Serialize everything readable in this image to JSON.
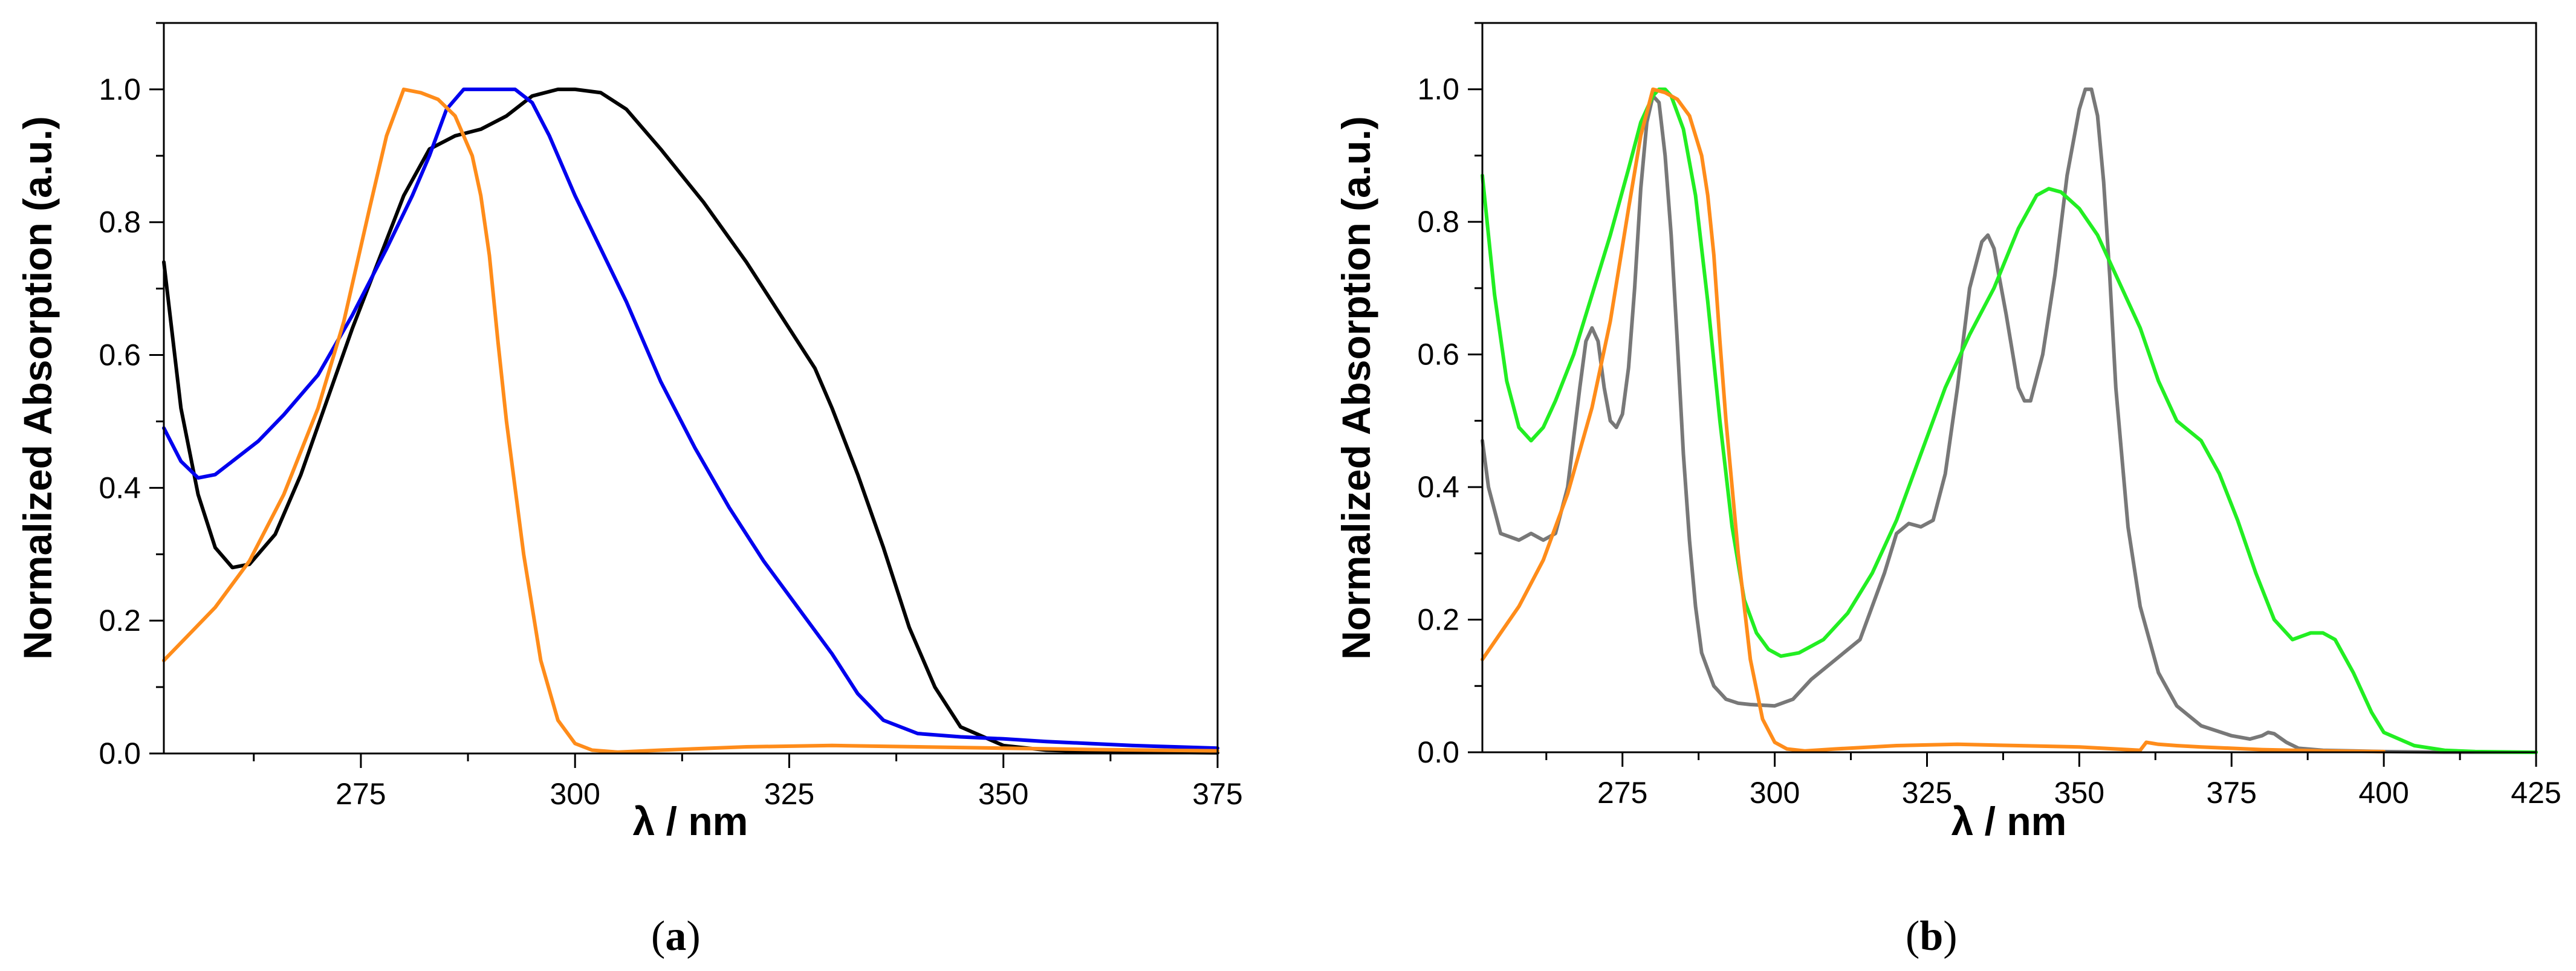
{
  "chart_data": [
    {
      "type": "line",
      "panel_label": "a",
      "xlabel": "λ / nm",
      "ylabel": "Normalized Absorption (a.u.)",
      "xlim": [
        252,
        375
      ],
      "ylim": [
        0.0,
        1.1
      ],
      "xticks": [
        275,
        300,
        325,
        350,
        375
      ],
      "yticks": [
        0.0,
        0.2,
        0.4,
        0.6,
        0.8,
        1.0
      ],
      "xtick_labels": [
        "275",
        "300",
        "325",
        "350",
        "375"
      ],
      "ytick_labels": [
        "0.0",
        "0.2",
        "0.4",
        "0.6",
        "0.8",
        "1.0"
      ],
      "grid": false,
      "series": [
        {
          "name": "black",
          "color": "#000000",
          "x": [
            252,
            254,
            256,
            258,
            260,
            262,
            265,
            268,
            271,
            274,
            277,
            280,
            283,
            286,
            289,
            292,
            295,
            298,
            300,
            303,
            306,
            310,
            315,
            320,
            325,
            328,
            330,
            333,
            336,
            339,
            342,
            345,
            350,
            355,
            360,
            365,
            375
          ],
          "y": [
            0.74,
            0.52,
            0.39,
            0.31,
            0.28,
            0.285,
            0.33,
            0.42,
            0.53,
            0.64,
            0.74,
            0.84,
            0.91,
            0.93,
            0.94,
            0.96,
            0.99,
            1.0,
            1.0,
            0.995,
            0.97,
            0.91,
            0.83,
            0.74,
            0.64,
            0.58,
            0.52,
            0.42,
            0.31,
            0.19,
            0.1,
            0.04,
            0.012,
            0.005,
            0.003,
            0.002,
            0.001
          ]
        },
        {
          "name": "blue",
          "color": "#0000ee",
          "x": [
            252,
            254,
            256,
            258,
            260,
            263,
            266,
            270,
            274,
            278,
            281,
            283,
            285,
            287,
            290,
            293,
            295,
            297,
            300,
            303,
            306,
            310,
            314,
            318,
            322,
            326,
            330,
            333,
            336,
            340,
            345,
            350,
            355,
            360,
            365,
            370,
            375
          ],
          "y": [
            0.49,
            0.44,
            0.415,
            0.42,
            0.44,
            0.47,
            0.51,
            0.57,
            0.66,
            0.76,
            0.84,
            0.9,
            0.97,
            1.0,
            1.0,
            1.0,
            0.98,
            0.93,
            0.84,
            0.76,
            0.68,
            0.56,
            0.46,
            0.37,
            0.29,
            0.22,
            0.15,
            0.09,
            0.05,
            0.03,
            0.025,
            0.022,
            0.018,
            0.015,
            0.012,
            0.01,
            0.008
          ]
        },
        {
          "name": "orange",
          "color": "#ff8c1a",
          "x": [
            252,
            255,
            258,
            262,
            266,
            270,
            273,
            276,
            278,
            280,
            282,
            284,
            286,
            288,
            289,
            290,
            291,
            292,
            294,
            296,
            298,
            300,
            302,
            305,
            310,
            320,
            330,
            340,
            350,
            360,
            375
          ],
          "y": [
            0.14,
            0.18,
            0.22,
            0.29,
            0.39,
            0.52,
            0.65,
            0.82,
            0.93,
            1.0,
            0.995,
            0.985,
            0.96,
            0.9,
            0.84,
            0.75,
            0.62,
            0.5,
            0.3,
            0.14,
            0.05,
            0.015,
            0.005,
            0.002,
            0.005,
            0.01,
            0.012,
            0.01,
            0.008,
            0.006,
            0.004
          ]
        }
      ]
    },
    {
      "type": "line",
      "panel_label": "b",
      "xlabel": "λ / nm",
      "ylabel": "Normalized Absorption (a.u.)",
      "xlim": [
        252,
        425
      ],
      "ylim": [
        0.0,
        1.1
      ],
      "xticks": [
        275,
        300,
        325,
        350,
        375,
        400,
        425
      ],
      "yticks": [
        0.0,
        0.2,
        0.4,
        0.6,
        0.8,
        1.0
      ],
      "xtick_labels": [
        "275",
        "300",
        "325",
        "350",
        "375",
        "400",
        "425"
      ],
      "ytick_labels": [
        "0.0",
        "0.2",
        "0.4",
        "0.6",
        "0.8",
        "1.0"
      ],
      "grid": false,
      "series": [
        {
          "name": "gray",
          "color": "#787878",
          "x": [
            252,
            253,
            255,
            258,
            260,
            262,
            264,
            266,
            268,
            269,
            270,
            271,
            272,
            273,
            274,
            275,
            276,
            277,
            278,
            279,
            280,
            281,
            282,
            283,
            284,
            285,
            286,
            287,
            288,
            290,
            292,
            294,
            296,
            298,
            300,
            303,
            306,
            310,
            314,
            318,
            320,
            322,
            324,
            326,
            328,
            330,
            332,
            334,
            335,
            336,
            338,
            340,
            341,
            342,
            344,
            346,
            348,
            350,
            351,
            352,
            353,
            354,
            355,
            356,
            358,
            360,
            363,
            366,
            370,
            375,
            378,
            380,
            381,
            382,
            384,
            386,
            390,
            395,
            400,
            410,
            425
          ],
          "y": [
            0.47,
            0.4,
            0.33,
            0.32,
            0.33,
            0.32,
            0.33,
            0.4,
            0.55,
            0.62,
            0.64,
            0.62,
            0.55,
            0.5,
            0.49,
            0.51,
            0.58,
            0.7,
            0.85,
            0.95,
            0.99,
            0.98,
            0.9,
            0.78,
            0.62,
            0.45,
            0.32,
            0.22,
            0.15,
            0.1,
            0.08,
            0.074,
            0.072,
            0.071,
            0.07,
            0.08,
            0.11,
            0.14,
            0.17,
            0.27,
            0.33,
            0.345,
            0.34,
            0.35,
            0.42,
            0.55,
            0.7,
            0.77,
            0.78,
            0.76,
            0.66,
            0.55,
            0.53,
            0.53,
            0.6,
            0.72,
            0.87,
            0.97,
            1.0,
            1.0,
            0.96,
            0.86,
            0.72,
            0.55,
            0.34,
            0.22,
            0.12,
            0.07,
            0.04,
            0.025,
            0.02,
            0.025,
            0.03,
            0.028,
            0.015,
            0.006,
            0.003,
            0.002,
            0.001,
            0.0,
            0.0
          ]
        },
        {
          "name": "green",
          "color": "#22ee22",
          "x": [
            252,
            254,
            256,
            258,
            260,
            262,
            264,
            267,
            270,
            273,
            276,
            278,
            280,
            281,
            282,
            283,
            285,
            287,
            289,
            291,
            293,
            295,
            297,
            299,
            301,
            304,
            308,
            312,
            316,
            320,
            324,
            328,
            332,
            336,
            340,
            343,
            345,
            347,
            350,
            353,
            356,
            360,
            363,
            366,
            370,
            373,
            376,
            379,
            382,
            385,
            388,
            390,
            392,
            395,
            398,
            400,
            405,
            410,
            415,
            425
          ],
          "y": [
            0.87,
            0.69,
            0.56,
            0.49,
            0.47,
            0.49,
            0.53,
            0.6,
            0.69,
            0.78,
            0.88,
            0.95,
            0.99,
            1.0,
            1.0,
            0.99,
            0.94,
            0.84,
            0.68,
            0.5,
            0.34,
            0.23,
            0.18,
            0.155,
            0.145,
            0.15,
            0.17,
            0.21,
            0.27,
            0.35,
            0.45,
            0.55,
            0.63,
            0.7,
            0.79,
            0.84,
            0.85,
            0.845,
            0.82,
            0.78,
            0.72,
            0.64,
            0.56,
            0.5,
            0.47,
            0.42,
            0.35,
            0.27,
            0.2,
            0.17,
            0.18,
            0.18,
            0.17,
            0.12,
            0.06,
            0.03,
            0.01,
            0.003,
            0.001,
            0.0
          ]
        },
        {
          "name": "orange",
          "color": "#ff8c1a",
          "x": [
            252,
            255,
            258,
            262,
            266,
            270,
            273,
            276,
            278,
            280,
            282,
            284,
            286,
            288,
            289,
            290,
            291,
            292,
            294,
            296,
            298,
            300,
            302,
            305,
            310,
            320,
            330,
            340,
            350,
            358,
            360,
            361,
            363,
            366,
            370,
            375,
            380,
            390,
            400
          ],
          "y": [
            0.14,
            0.18,
            0.22,
            0.29,
            0.39,
            0.52,
            0.65,
            0.82,
            0.93,
            1.0,
            0.995,
            0.985,
            0.96,
            0.9,
            0.84,
            0.75,
            0.62,
            0.5,
            0.3,
            0.14,
            0.05,
            0.015,
            0.005,
            0.002,
            0.005,
            0.01,
            0.012,
            0.01,
            0.008,
            0.004,
            0.003,
            0.015,
            0.012,
            0.01,
            0.008,
            0.006,
            0.004,
            0.002,
            0.001
          ]
        }
      ]
    }
  ]
}
